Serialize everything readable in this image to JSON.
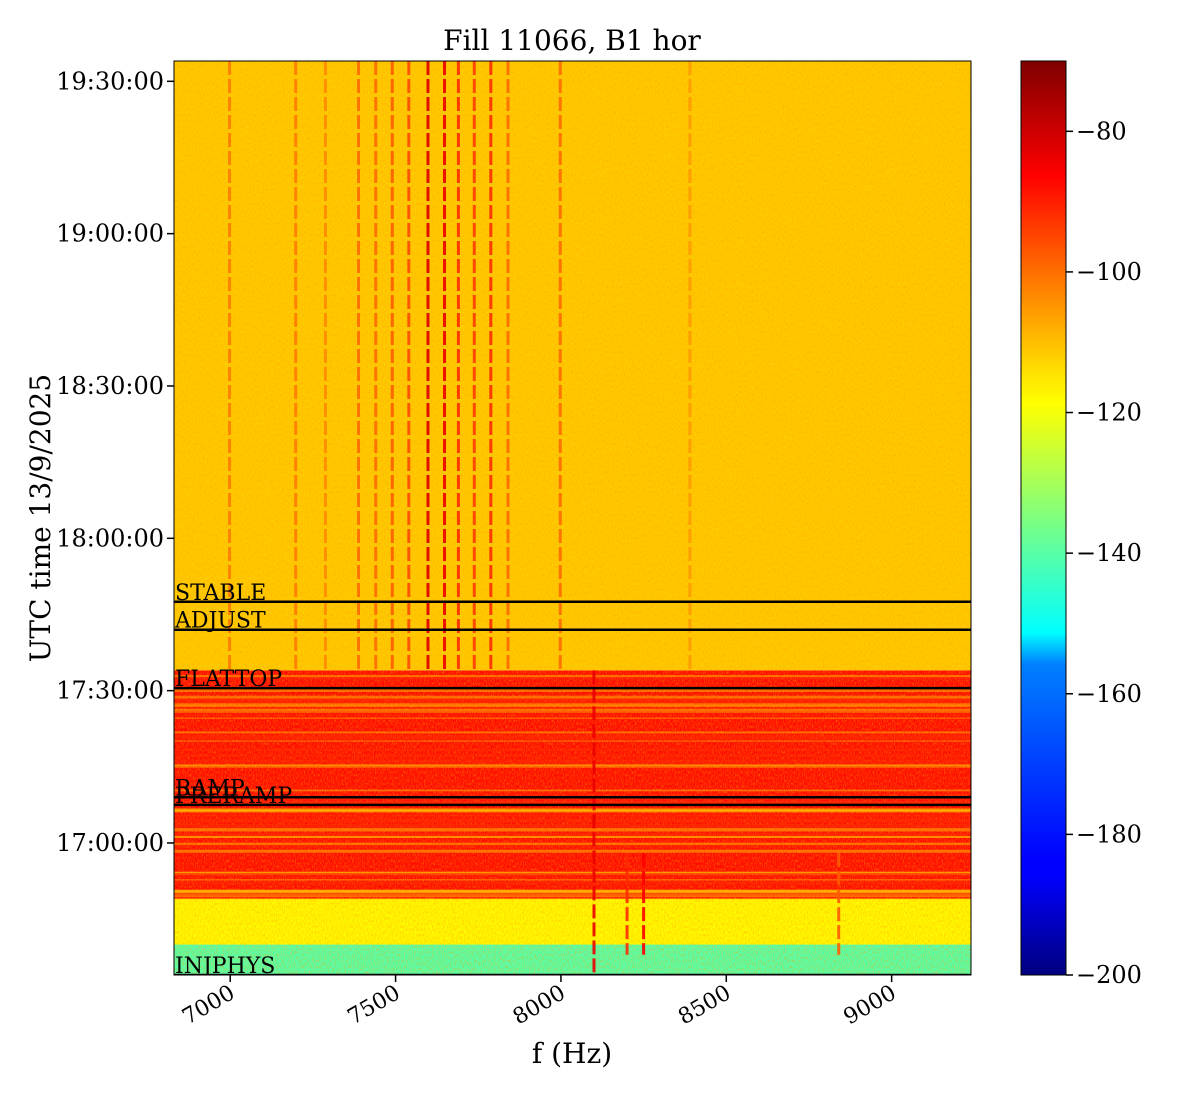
{
  "chart_data": {
    "type": "heatmap",
    "title": "Fill 11066, B1 hor",
    "xlabel": "f (Hz)",
    "ylabel": "UTC time 13/9/2025",
    "xlim": [
      6830,
      9240
    ],
    "ylim_minutes_after_1630": [
      4,
      184
    ],
    "x_ticks": [
      {
        "value": 7000,
        "label": "7000"
      },
      {
        "value": 7500,
        "label": "7500"
      },
      {
        "value": 8000,
        "label": "8000"
      },
      {
        "value": 8500,
        "label": "8500"
      },
      {
        "value": 9000,
        "label": "9000"
      }
    ],
    "y_ticks": [
      {
        "minute": 30,
        "label": "17:00:00"
      },
      {
        "minute": 60,
        "label": "17:30:00"
      },
      {
        "minute": 90,
        "label": "18:00:00"
      },
      {
        "minute": 120,
        "label": "18:30:00"
      },
      {
        "minute": 150,
        "label": "19:00:00"
      },
      {
        "minute": 180,
        "label": "19:30:00"
      }
    ],
    "colorbar": {
      "colormap": "jet",
      "min": -200,
      "max": -70,
      "ticks": [
        -80,
        -100,
        -120,
        -140,
        -160,
        -180,
        -200
      ],
      "tick_labels": [
        "−80",
        "−100",
        "−120",
        "−140",
        "−160",
        "−180",
        "−200"
      ]
    },
    "bands": [
      {
        "from_minute": 4,
        "to_minute": 10,
        "level": -140
      },
      {
        "from_minute": 10,
        "to_minute": 19,
        "level": -118
      },
      {
        "from_minute": 19,
        "to_minute": 64,
        "level": -88
      },
      {
        "from_minute": 64,
        "to_minute": 184,
        "level": -112
      }
    ],
    "lines": [
      {
        "f": 6998,
        "from_minute": 64,
        "to_minute": 184,
        "level": -102
      },
      {
        "f": 7198,
        "from_minute": 64,
        "to_minute": 184,
        "level": -102
      },
      {
        "f": 7288,
        "from_minute": 64,
        "to_minute": 184,
        "level": -104
      },
      {
        "f": 7388,
        "from_minute": 64,
        "to_minute": 184,
        "level": -100
      },
      {
        "f": 7440,
        "from_minute": 64,
        "to_minute": 184,
        "level": -100
      },
      {
        "f": 7490,
        "from_minute": 64,
        "to_minute": 184,
        "level": -98
      },
      {
        "f": 7540,
        "from_minute": 64,
        "to_minute": 184,
        "level": -96
      },
      {
        "f": 7598,
        "from_minute": 64,
        "to_minute": 184,
        "level": -82
      },
      {
        "f": 7648,
        "from_minute": 64,
        "to_minute": 184,
        "level": -84
      },
      {
        "f": 7690,
        "from_minute": 64,
        "to_minute": 184,
        "level": -92
      },
      {
        "f": 7738,
        "from_minute": 64,
        "to_minute": 184,
        "level": -94
      },
      {
        "f": 7788,
        "from_minute": 64,
        "to_minute": 184,
        "level": -92
      },
      {
        "f": 7840,
        "from_minute": 64,
        "to_minute": 184,
        "level": -100
      },
      {
        "f": 7998,
        "from_minute": 64,
        "to_minute": 184,
        "level": -100
      },
      {
        "f": 8390,
        "from_minute": 64,
        "to_minute": 184,
        "level": -106
      },
      {
        "f": 8100,
        "from_minute": 4,
        "to_minute": 64,
        "level": -84
      },
      {
        "f": 8250,
        "from_minute": 8,
        "to_minute": 28,
        "level": -86
      },
      {
        "f": 8200,
        "from_minute": 8,
        "to_minute": 28,
        "level": -92
      },
      {
        "f": 8840,
        "from_minute": 8,
        "to_minute": 28,
        "level": -98
      }
    ],
    "annotations": [
      {
        "label": "STABLE",
        "minute": 77.5
      },
      {
        "label": "ADJUST",
        "minute": 72
      },
      {
        "label": "FLATTOP",
        "minute": 60.5
      },
      {
        "label": "RAMP",
        "minute": 39
      },
      {
        "label": "PRERAMP",
        "minute": 37.5
      },
      {
        "label": "INJPHYS",
        "minute": 4
      }
    ]
  }
}
